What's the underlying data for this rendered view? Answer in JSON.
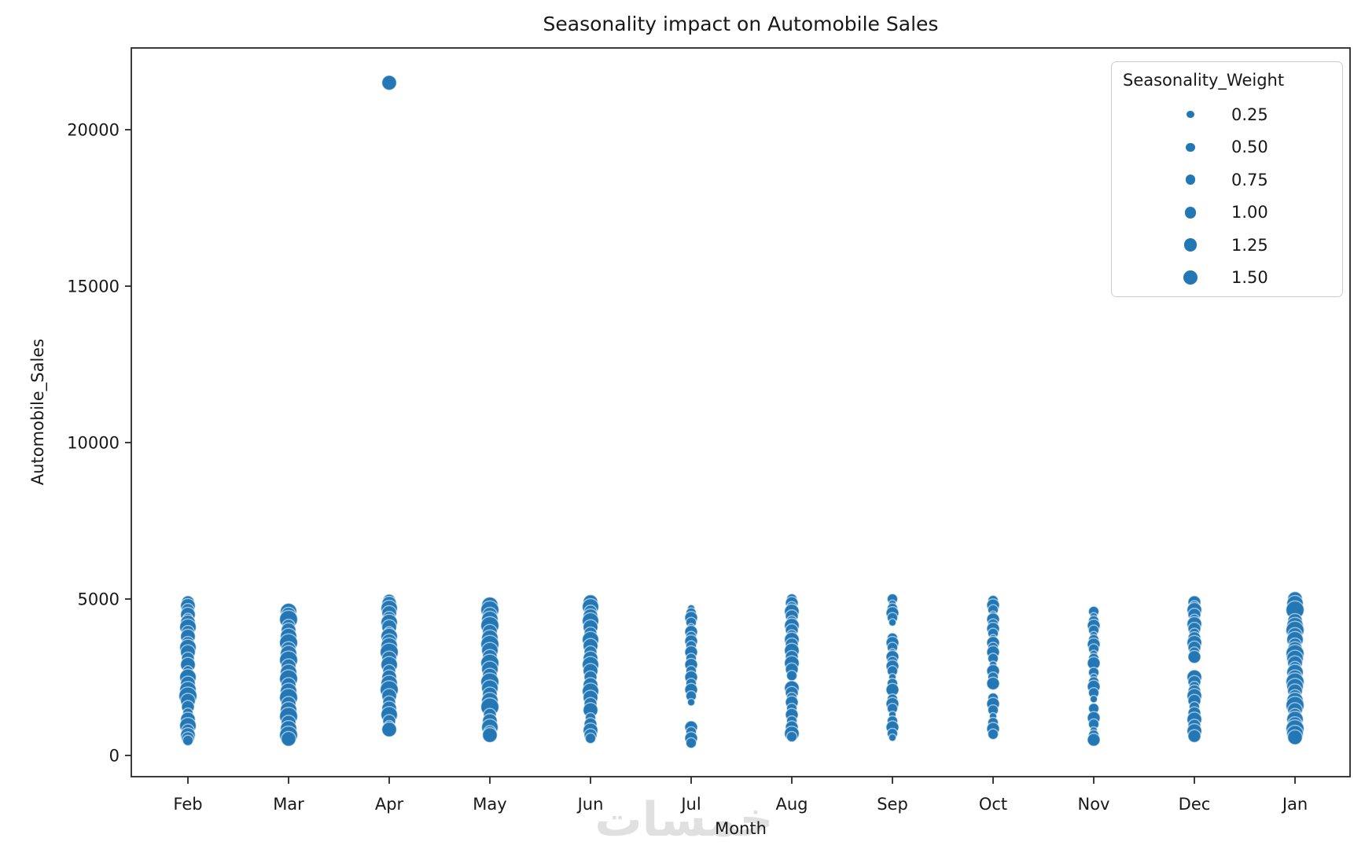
{
  "chart_data": {
    "type": "scatter",
    "title": "Seasonality impact on Automobile Sales",
    "xlabel": "Month",
    "ylabel": "Automobile_Sales",
    "x_categories": [
      "Feb",
      "Mar",
      "Apr",
      "May",
      "Jun",
      "Jul",
      "Aug",
      "Sep",
      "Oct",
      "Nov",
      "Dec",
      "Jan"
    ],
    "y_ticks": [
      0,
      5000,
      10000,
      15000,
      20000
    ],
    "ylim": [
      -680,
      22600
    ],
    "grid": false,
    "point_color": "#2277b4",
    "point_edge_color": "rgba(255,255,255,0.55)",
    "size_field": "Seasonality_Weight",
    "size_domain": [
      0.25,
      1.5
    ],
    "legend": {
      "title": "Seasonality_Weight",
      "position": "upper right",
      "entries": [
        {
          "label": "0.25",
          "weight": 0.25
        },
        {
          "label": "0.50",
          "weight": 0.5
        },
        {
          "label": "0.75",
          "weight": 0.75
        },
        {
          "label": "1.00",
          "weight": 1.0
        },
        {
          "label": "1.25",
          "weight": 1.25
        },
        {
          "label": "1.50",
          "weight": 1.5
        }
      ]
    },
    "series": [
      {
        "month": "Feb",
        "points": [
          [
            4900,
            0.75
          ],
          [
            4780,
            1.0
          ],
          [
            4650,
            0.75
          ],
          [
            4500,
            1.0
          ],
          [
            4380,
            0.5
          ],
          [
            4250,
            1.0
          ],
          [
            4100,
            1.25
          ],
          [
            3950,
            0.75
          ],
          [
            3800,
            1.0
          ],
          [
            3600,
            0.75
          ],
          [
            3450,
            1.25
          ],
          [
            3300,
            1.0
          ],
          [
            3100,
            0.75
          ],
          [
            2900,
            1.0
          ],
          [
            2700,
            0.5
          ],
          [
            2500,
            1.25
          ],
          [
            2300,
            1.0
          ],
          [
            2100,
            1.25
          ],
          [
            1900,
            1.5
          ],
          [
            1750,
            1.0
          ],
          [
            1550,
            0.75
          ],
          [
            1350,
            0.5
          ],
          [
            1150,
            1.0
          ],
          [
            950,
            1.25
          ],
          [
            800,
            0.75
          ],
          [
            650,
            1.0
          ],
          [
            550,
            0.75
          ],
          [
            480,
            0.5
          ]
        ]
      },
      {
        "month": "Mar",
        "points": [
          [
            4600,
            1.25
          ],
          [
            4500,
            1.0
          ],
          [
            4350,
            1.5
          ],
          [
            4150,
            0.75
          ],
          [
            4000,
            1.0
          ],
          [
            3800,
            1.25
          ],
          [
            3600,
            1.5
          ],
          [
            3400,
            1.0
          ],
          [
            3250,
            1.25
          ],
          [
            3050,
            1.5
          ],
          [
            2850,
            1.0
          ],
          [
            2650,
            1.25
          ],
          [
            2450,
            1.5
          ],
          [
            2250,
            1.0
          ],
          [
            2050,
            1.25
          ],
          [
            1850,
            1.5
          ],
          [
            1650,
            1.0
          ],
          [
            1450,
            1.25
          ],
          [
            1250,
            1.5
          ],
          [
            1050,
            1.0
          ],
          [
            850,
            1.25
          ],
          [
            650,
            1.5
          ],
          [
            530,
            1.0
          ]
        ]
      },
      {
        "month": "Apr",
        "points": [
          [
            21500,
            1.0
          ],
          [
            4950,
            0.75
          ],
          [
            4850,
            1.0
          ],
          [
            4700,
            1.25
          ],
          [
            4550,
            1.0
          ],
          [
            4400,
            0.75
          ],
          [
            4250,
            1.25
          ],
          [
            4100,
            1.0
          ],
          [
            3950,
            0.5
          ],
          [
            3800,
            1.25
          ],
          [
            3650,
            1.0
          ],
          [
            3500,
            1.25
          ],
          [
            3300,
            1.5
          ],
          [
            3100,
            1.0
          ],
          [
            2900,
            1.25
          ],
          [
            2700,
            0.75
          ],
          [
            2500,
            1.0
          ],
          [
            2300,
            1.25
          ],
          [
            2100,
            1.5
          ],
          [
            1900,
            1.0
          ],
          [
            1700,
            0.75
          ],
          [
            1500,
            1.0
          ],
          [
            1300,
            1.25
          ],
          [
            1100,
            0.75
          ],
          [
            950,
            0.5
          ],
          [
            830,
            1.0
          ]
        ]
      },
      {
        "month": "May",
        "points": [
          [
            4800,
            1.25
          ],
          [
            4650,
            1.5
          ],
          [
            4500,
            1.0
          ],
          [
            4350,
            1.25
          ],
          [
            4150,
            1.5
          ],
          [
            3950,
            1.0
          ],
          [
            3750,
            1.25
          ],
          [
            3550,
            1.5
          ],
          [
            3350,
            1.25
          ],
          [
            3150,
            1.0
          ],
          [
            2950,
            1.5
          ],
          [
            2750,
            1.25
          ],
          [
            2550,
            1.0
          ],
          [
            2350,
            1.5
          ],
          [
            2150,
            1.25
          ],
          [
            1950,
            1.0
          ],
          [
            1750,
            1.25
          ],
          [
            1550,
            1.5
          ],
          [
            1300,
            0.75
          ],
          [
            1100,
            1.0
          ],
          [
            900,
            1.25
          ],
          [
            750,
            0.75
          ],
          [
            650,
            1.0
          ]
        ]
      },
      {
        "month": "Jun",
        "points": [
          [
            4900,
            1.0
          ],
          [
            4750,
            1.25
          ],
          [
            4600,
            0.75
          ],
          [
            4450,
            1.0
          ],
          [
            4300,
            1.25
          ],
          [
            4100,
            1.0
          ],
          [
            3900,
            0.75
          ],
          [
            3700,
            1.25
          ],
          [
            3500,
            1.0
          ],
          [
            3300,
            0.75
          ],
          [
            3100,
            1.0
          ],
          [
            2900,
            1.25
          ],
          [
            2700,
            1.0
          ],
          [
            2500,
            0.75
          ],
          [
            2250,
            1.0
          ],
          [
            2050,
            1.25
          ],
          [
            1850,
            1.0
          ],
          [
            1650,
            0.75
          ],
          [
            1450,
            1.0
          ],
          [
            1200,
            0.5
          ],
          [
            1000,
            0.75
          ],
          [
            800,
            1.0
          ],
          [
            650,
            0.75
          ],
          [
            550,
            0.5
          ]
        ]
      },
      {
        "month": "Jul",
        "points": [
          [
            4700,
            0.25
          ],
          [
            4550,
            0.5
          ],
          [
            4400,
            0.75
          ],
          [
            4250,
            0.5
          ],
          [
            4100,
            0.25
          ],
          [
            3950,
            0.75
          ],
          [
            3800,
            0.5
          ],
          [
            3650,
            0.75
          ],
          [
            3500,
            0.5
          ],
          [
            3300,
            0.75
          ],
          [
            3100,
            0.5
          ],
          [
            2900,
            0.75
          ],
          [
            2700,
            0.5
          ],
          [
            2500,
            0.75
          ],
          [
            2300,
            0.5
          ],
          [
            2100,
            0.75
          ],
          [
            1900,
            0.5
          ],
          [
            1700,
            0.25
          ],
          [
            900,
            0.75
          ],
          [
            750,
            0.5
          ],
          [
            550,
            0.75
          ],
          [
            400,
            0.5
          ]
        ]
      },
      {
        "month": "Aug",
        "points": [
          [
            5000,
            0.5
          ],
          [
            4870,
            0.75
          ],
          [
            4750,
            0.5
          ],
          [
            4600,
            1.0
          ],
          [
            4450,
            0.75
          ],
          [
            4300,
            0.5
          ],
          [
            4150,
            1.0
          ],
          [
            4000,
            0.75
          ],
          [
            3850,
            0.5
          ],
          [
            3700,
            1.0
          ],
          [
            3550,
            0.75
          ],
          [
            3350,
            1.0
          ],
          [
            3150,
            0.75
          ],
          [
            2950,
            1.0
          ],
          [
            2750,
            0.75
          ],
          [
            2550,
            0.5
          ],
          [
            2150,
            1.0
          ],
          [
            2000,
            0.75
          ],
          [
            1850,
            0.5
          ],
          [
            1700,
            0.75
          ],
          [
            1500,
            0.5
          ],
          [
            1300,
            0.75
          ],
          [
            1100,
            0.5
          ],
          [
            900,
            0.75
          ],
          [
            700,
            1.0
          ],
          [
            600,
            0.5
          ]
        ]
      },
      {
        "month": "Sep",
        "points": [
          [
            5000,
            0.5
          ],
          [
            4850,
            0.25
          ],
          [
            4700,
            0.5
          ],
          [
            4550,
            0.75
          ],
          [
            4400,
            0.5
          ],
          [
            4250,
            0.25
          ],
          [
            3750,
            0.5
          ],
          [
            3600,
            0.75
          ],
          [
            3450,
            0.5
          ],
          [
            3300,
            0.25
          ],
          [
            3150,
            0.75
          ],
          [
            3000,
            0.5
          ],
          [
            2850,
            0.75
          ],
          [
            2700,
            0.5
          ],
          [
            2500,
            0.25
          ],
          [
            2300,
            0.5
          ],
          [
            2100,
            0.75
          ],
          [
            1800,
            0.5
          ],
          [
            1650,
            0.75
          ],
          [
            1500,
            0.5
          ],
          [
            1300,
            0.25
          ],
          [
            1100,
            0.5
          ],
          [
            900,
            0.75
          ],
          [
            700,
            0.5
          ],
          [
            570,
            0.25
          ]
        ]
      },
      {
        "month": "Oct",
        "points": [
          [
            4950,
            0.5
          ],
          [
            4800,
            0.75
          ],
          [
            4650,
            0.5
          ],
          [
            4500,
            0.25
          ],
          [
            4350,
            0.75
          ],
          [
            4200,
            0.5
          ],
          [
            4050,
            0.75
          ],
          [
            3900,
            0.5
          ],
          [
            3750,
            0.25
          ],
          [
            3600,
            0.75
          ],
          [
            3450,
            0.5
          ],
          [
            3300,
            0.75
          ],
          [
            3100,
            0.5
          ],
          [
            2900,
            0.25
          ],
          [
            2700,
            0.75
          ],
          [
            2500,
            0.5
          ],
          [
            2300,
            0.75
          ],
          [
            1830,
            0.5
          ],
          [
            1650,
            0.75
          ],
          [
            1450,
            0.5
          ],
          [
            1250,
            0.25
          ],
          [
            1050,
            0.5
          ],
          [
            850,
            0.75
          ],
          [
            680,
            0.5
          ]
        ]
      },
      {
        "month": "Nov",
        "points": [
          [
            4600,
            0.5
          ],
          [
            4450,
            0.25
          ],
          [
            4300,
            0.5
          ],
          [
            4150,
            0.75
          ],
          [
            4000,
            0.5
          ],
          [
            3850,
            0.25
          ],
          [
            3700,
            0.5
          ],
          [
            3550,
            0.75
          ],
          [
            3400,
            0.5
          ],
          [
            3250,
            0.25
          ],
          [
            3100,
            0.5
          ],
          [
            2950,
            0.75
          ],
          [
            2650,
            0.5
          ],
          [
            2500,
            0.25
          ],
          [
            2350,
            0.5
          ],
          [
            2200,
            0.75
          ],
          [
            2000,
            0.5
          ],
          [
            1800,
            0.25
          ],
          [
            1500,
            0.5
          ],
          [
            1200,
            0.75
          ],
          [
            1000,
            0.5
          ],
          [
            800,
            0.25
          ],
          [
            650,
            0.5
          ],
          [
            500,
            0.75
          ]
        ]
      },
      {
        "month": "Dec",
        "points": [
          [
            4900,
            0.75
          ],
          [
            4780,
            0.5
          ],
          [
            4650,
            1.0
          ],
          [
            4500,
            0.75
          ],
          [
            4350,
            0.5
          ],
          [
            4200,
            1.0
          ],
          [
            4050,
            0.75
          ],
          [
            3900,
            0.5
          ],
          [
            3750,
            0.75
          ],
          [
            3600,
            1.0
          ],
          [
            3450,
            0.75
          ],
          [
            3300,
            0.5
          ],
          [
            3150,
            0.75
          ],
          [
            2500,
            1.0
          ],
          [
            2350,
            0.75
          ],
          [
            2200,
            0.5
          ],
          [
            2050,
            0.75
          ],
          [
            1900,
            1.0
          ],
          [
            1750,
            0.75
          ],
          [
            1550,
            0.5
          ],
          [
            1350,
            0.75
          ],
          [
            1150,
            1.0
          ],
          [
            950,
            0.75
          ],
          [
            780,
            1.0
          ],
          [
            620,
            0.75
          ]
        ]
      },
      {
        "month": "Jan",
        "points": [
          [
            5000,
            1.0
          ],
          [
            4850,
            1.25
          ],
          [
            4650,
            1.5
          ],
          [
            4300,
            1.0
          ],
          [
            4150,
            1.25
          ],
          [
            4000,
            1.5
          ],
          [
            3850,
            1.0
          ],
          [
            3700,
            1.25
          ],
          [
            3550,
            0.75
          ],
          [
            3400,
            1.0
          ],
          [
            3250,
            1.5
          ],
          [
            3100,
            1.25
          ],
          [
            2950,
            1.0
          ],
          [
            2800,
            0.75
          ],
          [
            2650,
            1.25
          ],
          [
            2500,
            1.0
          ],
          [
            2350,
            1.5
          ],
          [
            2200,
            1.25
          ],
          [
            2050,
            1.0
          ],
          [
            1900,
            0.75
          ],
          [
            1750,
            1.25
          ],
          [
            1600,
            1.5
          ],
          [
            1450,
            1.0
          ],
          [
            1300,
            0.75
          ],
          [
            1150,
            1.25
          ],
          [
            1000,
            1.0
          ],
          [
            850,
            1.5
          ],
          [
            700,
            1.25
          ],
          [
            580,
            1.0
          ]
        ]
      }
    ]
  },
  "watermark": {
    "text": "خمسات",
    "color": "#e0e0e0"
  }
}
